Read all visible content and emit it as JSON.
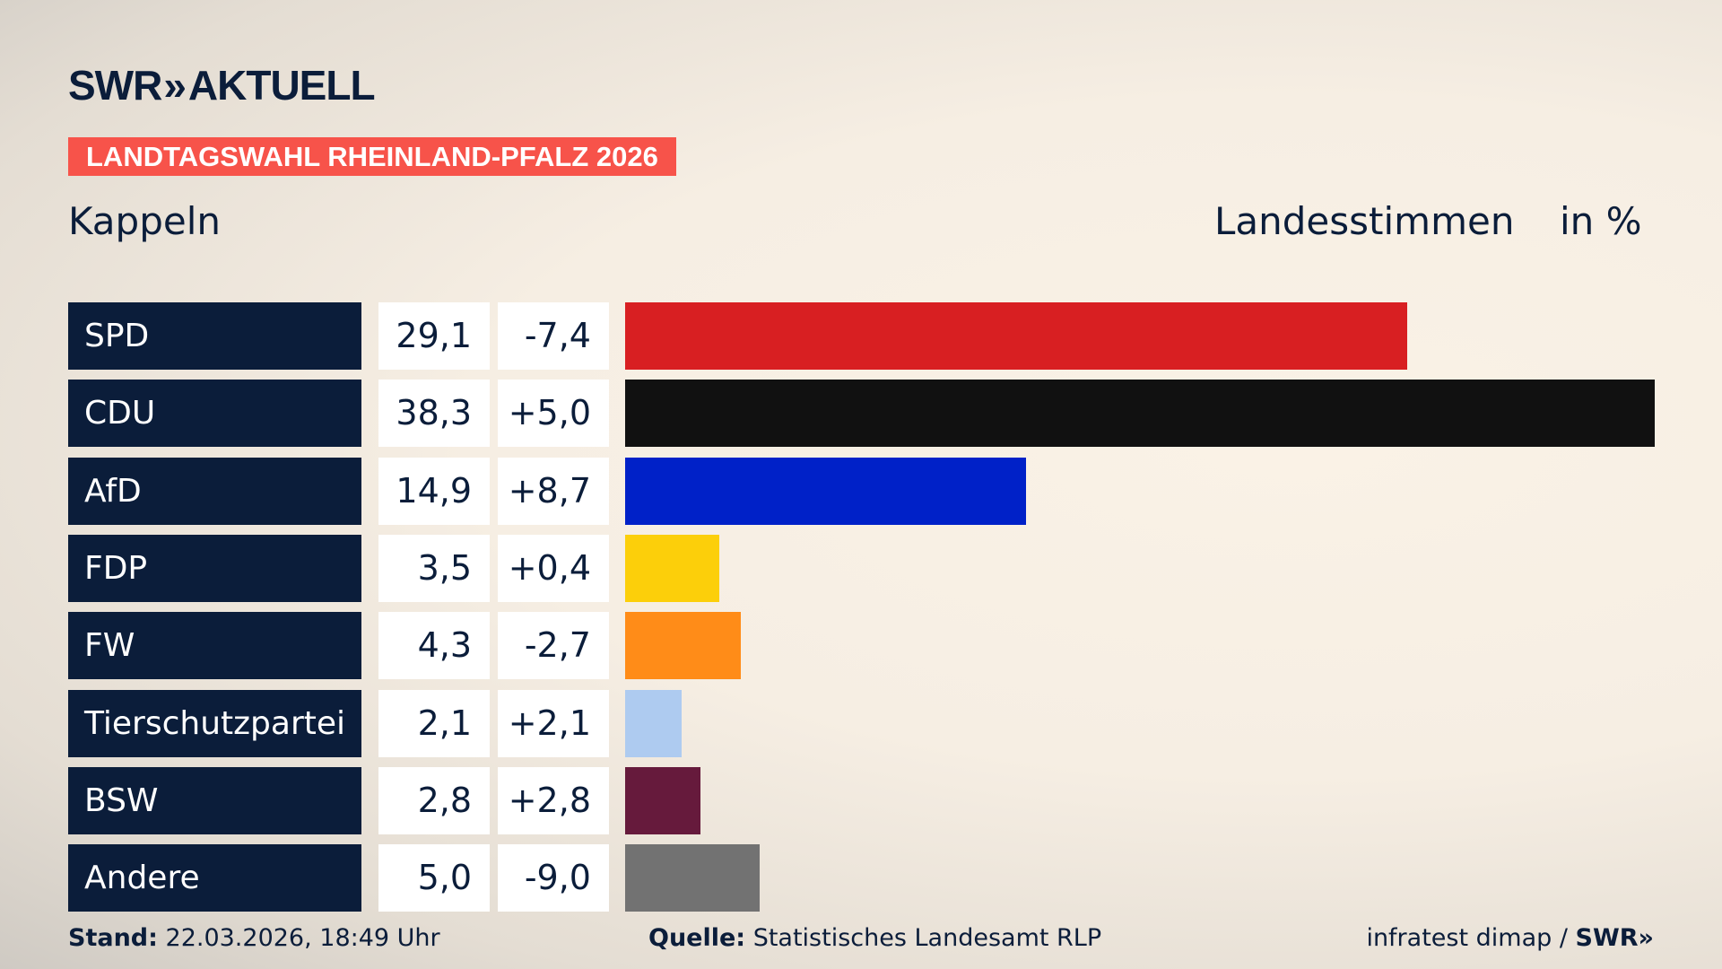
{
  "header": {
    "logo": "SWR AKTUELL",
    "logo_main": "SWR",
    "logo_chevrons": "»",
    "logo_sub": "AKTUELL",
    "banner": "LANDTAGSWAHL RHEINLAND-PFALZ 2026",
    "place": "Kappeln",
    "vote_type": "Landesstimmen",
    "unit": "in %"
  },
  "chart_data": {
    "type": "bar",
    "orientation": "horizontal",
    "categories": [
      "SPD",
      "CDU",
      "AfD",
      "FDP",
      "FW",
      "Tierschutzpartei",
      "BSW",
      "Andere"
    ],
    "values": [
      29.1,
      38.3,
      14.9,
      3.5,
      4.3,
      2.1,
      2.8,
      5.0
    ],
    "value_labels": [
      "29,1",
      "38,3",
      "14,9",
      "3,5",
      "4,3",
      "2,1",
      "2,8",
      "5,0"
    ],
    "change_labels": [
      "-7,4",
      "+5,0",
      "+8,7",
      "+0,4",
      "-2,7",
      "+2,1",
      "+2,8",
      "-9,0"
    ],
    "changes": [
      -7.4,
      5.0,
      8.7,
      0.4,
      -2.7,
      2.1,
      2.8,
      -9.0
    ],
    "colors": [
      "#d81f22",
      "#111111",
      "#0021c8",
      "#fccf0a",
      "#ff8c18",
      "#aecbf0",
      "#661a3c",
      "#727272"
    ],
    "xlim": [
      0,
      38.3
    ]
  },
  "footer": {
    "stand_label": "Stand:",
    "stand_value": "22.03.2026, 18:49 Uhr",
    "source_label": "Quelle:",
    "source_value": "Statistisches Landesamt RLP",
    "credit": "infratest dimap / ",
    "credit_logo": "SWR»"
  }
}
